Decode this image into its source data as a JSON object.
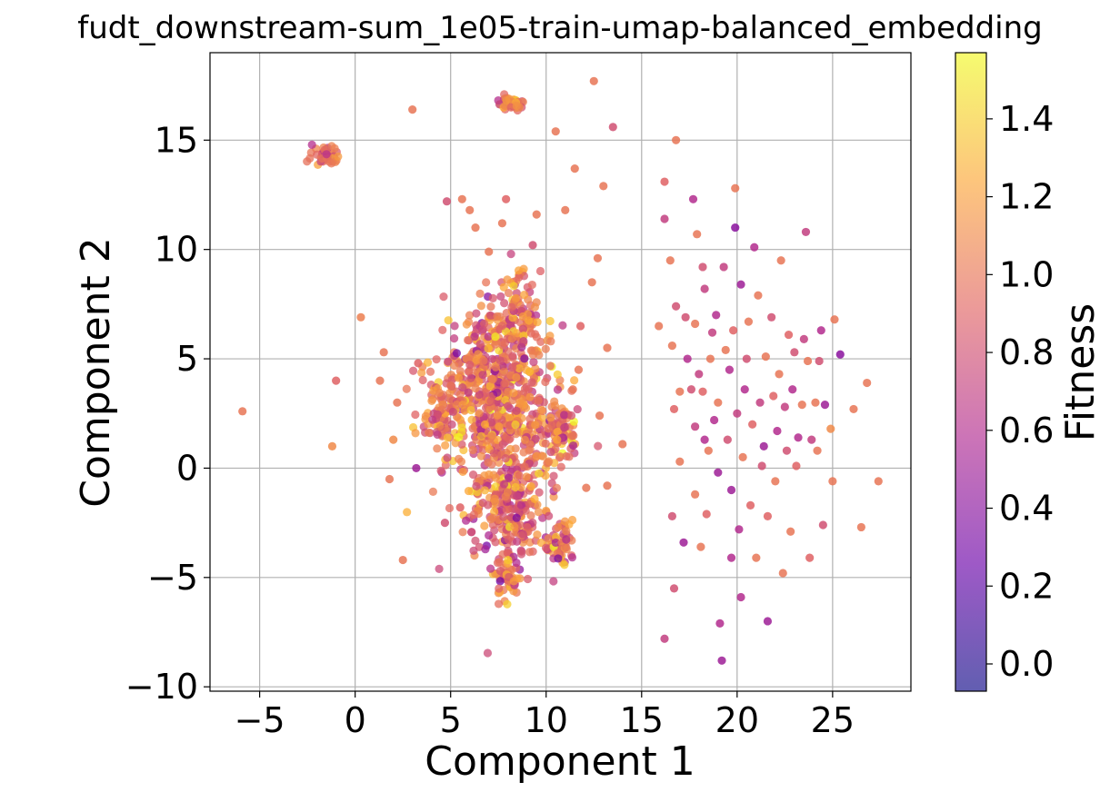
{
  "chart_data": {
    "type": "scatter",
    "title": "fudt_downstream-sum_1e05-train-umap-balanced_embedding",
    "xlabel": "Component 1",
    "ylabel": "Component 2",
    "xlim": [
      -7.6,
      29.1
    ],
    "ylim": [
      -10.2,
      19.0
    ],
    "xticks": [
      -5,
      0,
      5,
      10,
      15,
      20,
      25
    ],
    "yticks": [
      -10,
      -5,
      0,
      5,
      10,
      15
    ],
    "xtick_labels": [
      "−5",
      "0",
      "5",
      "10",
      "15",
      "20",
      "25"
    ],
    "ytick_labels": [
      "−10",
      "−5",
      "0",
      "5",
      "10",
      "15"
    ],
    "grid": true,
    "colormap": "plasma",
    "colorbar": {
      "label": "Fitness",
      "range": [
        -0.07,
        1.57
      ],
      "ticks": [
        0.0,
        0.2,
        0.4,
        0.6,
        0.8,
        1.0,
        1.2,
        1.4
      ],
      "tick_labels": [
        "0.0",
        "0.2",
        "0.4",
        "0.6",
        "0.8",
        "1.0",
        "1.2",
        "1.4"
      ],
      "stops": [
        "#0d0887",
        "#6a00a8",
        "#b12a90",
        "#e16462",
        "#fca636",
        "#f0f921"
      ]
    },
    "clusters": [
      {
        "x": 7.8,
        "y": 2.0,
        "sx": 1.5,
        "sy": 2.6,
        "fitness": 0.95
      },
      {
        "x": 6.8,
        "y": 4.2,
        "sx": 1.0,
        "sy": 1.6,
        "fitness": 0.95
      },
      {
        "x": 8.2,
        "y": -2.2,
        "sx": 0.8,
        "sy": 1.2,
        "fitness": 0.9
      },
      {
        "x": 4.5,
        "y": 2.6,
        "sx": 0.6,
        "sy": 0.8,
        "fitness": 1.0
      },
      {
        "x": 8.5,
        "y": 7.0,
        "sx": 0.6,
        "sy": 1.0,
        "fitness": 0.95
      },
      {
        "x": 8.0,
        "y": -5.0,
        "sx": 0.3,
        "sy": 0.5,
        "fitness": 1.0
      },
      {
        "x": 8.2,
        "y": 16.7,
        "sx": 0.4,
        "sy": 0.2,
        "fitness": 1.0
      },
      {
        "x": -1.5,
        "y": 14.3,
        "sx": 0.4,
        "sy": 0.25,
        "fitness": 1.0
      },
      {
        "x": 10.8,
        "y": 1.8,
        "sx": 0.4,
        "sy": 1.0,
        "fitness": 1.0
      },
      {
        "x": 10.7,
        "y": -3.5,
        "sx": 0.4,
        "sy": 0.6,
        "fitness": 1.0
      }
    ],
    "points": [
      {
        "x": -5.9,
        "y": 2.6,
        "fitness": 1.0
      },
      {
        "x": -1.2,
        "y": 1.0,
        "fitness": 1.1
      },
      {
        "x": -1.0,
        "y": 4.0,
        "fitness": 0.9
      },
      {
        "x": 0.3,
        "y": 6.9,
        "fitness": 1.05
      },
      {
        "x": 1.5,
        "y": 5.3,
        "fitness": 1.0
      },
      {
        "x": 1.3,
        "y": 4.0,
        "fitness": 1.0
      },
      {
        "x": 2.0,
        "y": 1.3,
        "fitness": 1.1
      },
      {
        "x": 1.8,
        "y": -0.5,
        "fitness": 1.0
      },
      {
        "x": 2.2,
        "y": 3.0,
        "fitness": 1.0
      },
      {
        "x": 2.5,
        "y": -4.2,
        "fitness": 1.0
      },
      {
        "x": 3.0,
        "y": 16.4,
        "fitness": 1.0
      },
      {
        "x": 3.2,
        "y": 0.0,
        "fitness": 0.5
      },
      {
        "x": 3.3,
        "y": 4.8,
        "fitness": 0.9
      },
      {
        "x": 4.7,
        "y": -2.5,
        "fitness": 0.8
      },
      {
        "x": 4.8,
        "y": 12.2,
        "fitness": 0.8
      },
      {
        "x": 5.5,
        "y": -1.8,
        "fitness": 0.9
      },
      {
        "x": 5.6,
        "y": 12.3,
        "fitness": 1.0
      },
      {
        "x": 6.0,
        "y": 11.8,
        "fitness": 1.0
      },
      {
        "x": 6.3,
        "y": 11.0,
        "fitness": 1.0
      },
      {
        "x": 7.0,
        "y": 9.9,
        "fitness": 1.0
      },
      {
        "x": 7.7,
        "y": 11.2,
        "fitness": 1.0
      },
      {
        "x": 7.9,
        "y": 12.3,
        "fitness": 0.9
      },
      {
        "x": 9.5,
        "y": 11.6,
        "fitness": 1.0
      },
      {
        "x": 9.3,
        "y": 10.2,
        "fitness": 0.8
      },
      {
        "x": 10.5,
        "y": 15.4,
        "fitness": 1.0
      },
      {
        "x": 11.0,
        "y": 11.8,
        "fitness": 1.0
      },
      {
        "x": 11.4,
        "y": 3.6,
        "fitness": 1.0
      },
      {
        "x": 11.5,
        "y": 13.7,
        "fitness": 1.0
      },
      {
        "x": 11.7,
        "y": 4.5,
        "fitness": 1.0
      },
      {
        "x": 11.8,
        "y": 6.5,
        "fitness": 0.9
      },
      {
        "x": 12.1,
        "y": -0.9,
        "fitness": 1.0
      },
      {
        "x": 12.4,
        "y": 8.5,
        "fitness": 1.0
      },
      {
        "x": 12.5,
        "y": 17.7,
        "fitness": 1.0
      },
      {
        "x": 12.7,
        "y": 9.6,
        "fitness": 1.0
      },
      {
        "x": 12.8,
        "y": 2.4,
        "fitness": 1.0
      },
      {
        "x": 13.0,
        "y": 12.9,
        "fitness": 1.0
      },
      {
        "x": 13.2,
        "y": 5.5,
        "fitness": 1.0
      },
      {
        "x": 13.2,
        "y": -0.8,
        "fitness": 1.0
      },
      {
        "x": 13.5,
        "y": 15.6,
        "fitness": 0.8
      },
      {
        "x": 14.0,
        "y": 1.1,
        "fitness": 1.0
      },
      {
        "x": 15.9,
        "y": 6.5,
        "fitness": 1.0
      },
      {
        "x": 16.2,
        "y": 13.1,
        "fitness": 0.9
      },
      {
        "x": 16.2,
        "y": 11.4,
        "fitness": 0.7
      },
      {
        "x": 16.2,
        "y": -7.8,
        "fitness": 0.7
      },
      {
        "x": 16.5,
        "y": 9.5,
        "fitness": 1.0
      },
      {
        "x": 16.6,
        "y": 5.6,
        "fitness": 1.0
      },
      {
        "x": 16.6,
        "y": -2.2,
        "fitness": 0.8
      },
      {
        "x": 16.7,
        "y": 2.7,
        "fitness": 0.9
      },
      {
        "x": 16.7,
        "y": -5.5,
        "fitness": 0.8
      },
      {
        "x": 16.8,
        "y": 15.0,
        "fitness": 1.0
      },
      {
        "x": 16.8,
        "y": 7.4,
        "fitness": 0.8
      },
      {
        "x": 17.0,
        "y": 3.5,
        "fitness": 1.0
      },
      {
        "x": 17.0,
        "y": 0.3,
        "fitness": 1.0
      },
      {
        "x": 17.2,
        "y": -3.4,
        "fitness": 0.5
      },
      {
        "x": 17.3,
        "y": 6.9,
        "fitness": 0.8
      },
      {
        "x": 17.4,
        "y": 5.0,
        "fitness": 0.6
      },
      {
        "x": 17.6,
        "y": 3.6,
        "fitness": 0.8
      },
      {
        "x": 17.7,
        "y": 12.3,
        "fitness": 0.6
      },
      {
        "x": 17.8,
        "y": 6.6,
        "fitness": 1.0
      },
      {
        "x": 17.8,
        "y": 1.9,
        "fitness": 0.7
      },
      {
        "x": 17.8,
        "y": -1.2,
        "fitness": 1.0
      },
      {
        "x": 17.9,
        "y": 10.7,
        "fitness": 1.0
      },
      {
        "x": 18.0,
        "y": 4.3,
        "fitness": 0.7
      },
      {
        "x": 18.1,
        "y": -3.6,
        "fitness": 1.0
      },
      {
        "x": 18.2,
        "y": 3.5,
        "fitness": 0.9
      },
      {
        "x": 18.2,
        "y": 9.2,
        "fitness": 0.8
      },
      {
        "x": 18.3,
        "y": 8.2,
        "fitness": 0.7
      },
      {
        "x": 18.3,
        "y": 1.3,
        "fitness": 0.6
      },
      {
        "x": 18.4,
        "y": -2.1,
        "fitness": 0.9
      },
      {
        "x": 18.5,
        "y": 0.8,
        "fitness": 1.0
      },
      {
        "x": 18.6,
        "y": 5.0,
        "fitness": 1.0
      },
      {
        "x": 18.7,
        "y": 6.2,
        "fitness": 0.7
      },
      {
        "x": 18.8,
        "y": 2.2,
        "fitness": 0.6
      },
      {
        "x": 18.9,
        "y": 7.0,
        "fitness": 0.6
      },
      {
        "x": 19.0,
        "y": 3.0,
        "fitness": 1.0
      },
      {
        "x": 19.0,
        "y": -0.2,
        "fitness": 0.5
      },
      {
        "x": 19.1,
        "y": -7.1,
        "fitness": 0.6
      },
      {
        "x": 19.2,
        "y": -8.8,
        "fitness": 0.5
      },
      {
        "x": 19.3,
        "y": 9.2,
        "fitness": 0.7
      },
      {
        "x": 19.4,
        "y": 5.4,
        "fitness": 1.0
      },
      {
        "x": 19.5,
        "y": 1.3,
        "fitness": 0.8
      },
      {
        "x": 19.6,
        "y": 4.5,
        "fitness": 0.6
      },
      {
        "x": 19.7,
        "y": -1.0,
        "fitness": 0.5
      },
      {
        "x": 19.7,
        "y": -4.1,
        "fitness": 0.6
      },
      {
        "x": 19.8,
        "y": 6.3,
        "fitness": 0.9
      },
      {
        "x": 19.9,
        "y": 11.0,
        "fitness": 0.4
      },
      {
        "x": 19.9,
        "y": 12.8,
        "fitness": 1.0
      },
      {
        "x": 20.0,
        "y": 2.5,
        "fitness": 0.7
      },
      {
        "x": 20.1,
        "y": -2.8,
        "fitness": 0.6
      },
      {
        "x": 20.2,
        "y": 8.4,
        "fitness": 0.5
      },
      {
        "x": 20.2,
        "y": -5.9,
        "fitness": 0.6
      },
      {
        "x": 20.3,
        "y": 0.5,
        "fitness": 1.0
      },
      {
        "x": 20.4,
        "y": 3.6,
        "fitness": 0.6
      },
      {
        "x": 20.5,
        "y": 5.0,
        "fitness": 0.8
      },
      {
        "x": 20.6,
        "y": 6.7,
        "fitness": 1.0
      },
      {
        "x": 20.7,
        "y": -1.7,
        "fitness": 0.9
      },
      {
        "x": 20.8,
        "y": 2.0,
        "fitness": 0.9
      },
      {
        "x": 20.9,
        "y": 10.1,
        "fitness": 0.6
      },
      {
        "x": 21.0,
        "y": -4.1,
        "fitness": 1.0
      },
      {
        "x": 21.1,
        "y": 7.9,
        "fitness": 1.0
      },
      {
        "x": 21.2,
        "y": 3.0,
        "fitness": 0.7
      },
      {
        "x": 21.3,
        "y": 0.1,
        "fitness": 0.8
      },
      {
        "x": 21.4,
        "y": 1.0,
        "fitness": 0.5
      },
      {
        "x": 21.5,
        "y": 5.1,
        "fitness": 1.0
      },
      {
        "x": 21.6,
        "y": -7.0,
        "fitness": 0.5
      },
      {
        "x": 21.6,
        "y": -2.2,
        "fitness": 0.9
      },
      {
        "x": 21.8,
        "y": 6.9,
        "fitness": 0.8
      },
      {
        "x": 21.9,
        "y": 3.3,
        "fitness": 0.9
      },
      {
        "x": 22.0,
        "y": -0.6,
        "fitness": 1.0
      },
      {
        "x": 22.1,
        "y": 1.7,
        "fitness": 0.6
      },
      {
        "x": 22.2,
        "y": 4.3,
        "fitness": 1.0
      },
      {
        "x": 22.3,
        "y": 9.5,
        "fitness": 1.0
      },
      {
        "x": 22.4,
        "y": -4.8,
        "fitness": 1.0
      },
      {
        "x": 22.5,
        "y": 2.8,
        "fitness": 0.7
      },
      {
        "x": 22.6,
        "y": 0.8,
        "fitness": 0.8
      },
      {
        "x": 22.7,
        "y": 6.1,
        "fitness": 0.9
      },
      {
        "x": 22.8,
        "y": -2.9,
        "fitness": 1.0
      },
      {
        "x": 22.9,
        "y": 3.6,
        "fitness": 0.6
      },
      {
        "x": 23.0,
        "y": 5.3,
        "fitness": 0.8
      },
      {
        "x": 23.1,
        "y": 0.1,
        "fitness": 0.9
      },
      {
        "x": 23.2,
        "y": 1.4,
        "fitness": 0.6
      },
      {
        "x": 23.4,
        "y": 2.9,
        "fitness": 1.0
      },
      {
        "x": 23.5,
        "y": 5.9,
        "fitness": 0.7
      },
      {
        "x": 23.6,
        "y": 10.8,
        "fitness": 0.7
      },
      {
        "x": 23.7,
        "y": 4.9,
        "fitness": 1.0
      },
      {
        "x": 23.8,
        "y": -4.1,
        "fitness": 0.9
      },
      {
        "x": 23.9,
        "y": 1.3,
        "fitness": 0.7
      },
      {
        "x": 24.1,
        "y": 3.0,
        "fitness": 1.0
      },
      {
        "x": 24.2,
        "y": 0.8,
        "fitness": 1.0
      },
      {
        "x": 24.3,
        "y": 4.9,
        "fitness": 0.8
      },
      {
        "x": 24.4,
        "y": 6.3,
        "fitness": 0.6
      },
      {
        "x": 24.5,
        "y": -2.6,
        "fitness": 0.8
      },
      {
        "x": 24.6,
        "y": 2.9,
        "fitness": 0.5
      },
      {
        "x": 24.9,
        "y": 1.8,
        "fitness": 1.1
      },
      {
        "x": 25.0,
        "y": -0.6,
        "fitness": 1.0
      },
      {
        "x": 25.1,
        "y": 6.8,
        "fitness": 1.0
      },
      {
        "x": 25.4,
        "y": 5.2,
        "fitness": 0.4
      },
      {
        "x": 26.1,
        "y": 2.7,
        "fitness": 1.0
      },
      {
        "x": 26.5,
        "y": -2.7,
        "fitness": 1.0
      },
      {
        "x": 26.8,
        "y": 3.9,
        "fitness": 1.0
      },
      {
        "x": 27.4,
        "y": -0.6,
        "fitness": 1.0
      }
    ]
  }
}
